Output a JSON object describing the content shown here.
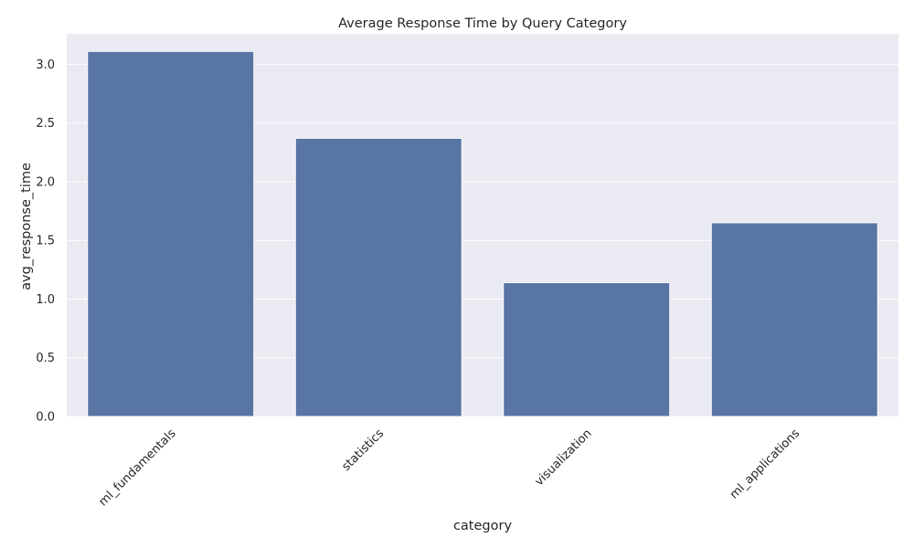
{
  "chart_data": {
    "type": "bar",
    "title": "Average Response Time by Query Category",
    "xlabel": "category",
    "ylabel": "avg_response_time",
    "categories": [
      "ml_fundamentals",
      "statistics",
      "visualization",
      "ml_applications"
    ],
    "values": [
      3.11,
      2.37,
      1.14,
      1.65
    ],
    "ylim": [
      0,
      3.26
    ],
    "yticks": [
      "0.0",
      "0.5",
      "1.0",
      "1.5",
      "2.0",
      "2.5",
      "3.0"
    ],
    "ytick_values": [
      0,
      0.5,
      1.0,
      1.5,
      2.0,
      2.5,
      3.0
    ],
    "grid": true,
    "colors": {
      "bar": "#5975a4",
      "background": "#eaeaf2",
      "grid": "#ffffff",
      "text": "#262626"
    }
  }
}
